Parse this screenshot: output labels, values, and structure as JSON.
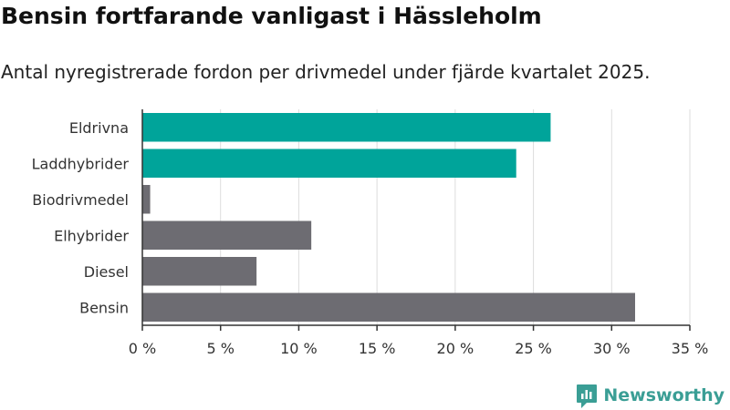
{
  "title": "Bensin fortfarande vanligast i Hässleholm",
  "subtitle": "Antal nyregistrerade fordon per drivmedel under fjärde kvartalet 2025.",
  "brand": "Newsworthy",
  "colors": {
    "highlight": "#00a49a",
    "default": "#6d6c72",
    "grid": "#dddddd",
    "brand": "#3a9e95"
  },
  "chart_data": {
    "type": "bar",
    "orientation": "horizontal",
    "categories": [
      "Eldrivna",
      "Laddhybrider",
      "Biodrivmedel",
      "Elhybrider",
      "Diesel",
      "Bensin"
    ],
    "values": [
      26.1,
      23.9,
      0.5,
      10.8,
      7.3,
      31.5
    ],
    "highlighted": [
      true,
      true,
      false,
      false,
      false,
      false
    ],
    "xlim": [
      0,
      35
    ],
    "xticks": [
      0,
      5,
      10,
      15,
      20,
      25,
      30,
      35
    ],
    "xtick_labels": [
      "0 %",
      "5 %",
      "10 %",
      "15 %",
      "20 %",
      "25 %",
      "30 %",
      "35 %"
    ],
    "xlabel": "",
    "ylabel": ""
  }
}
